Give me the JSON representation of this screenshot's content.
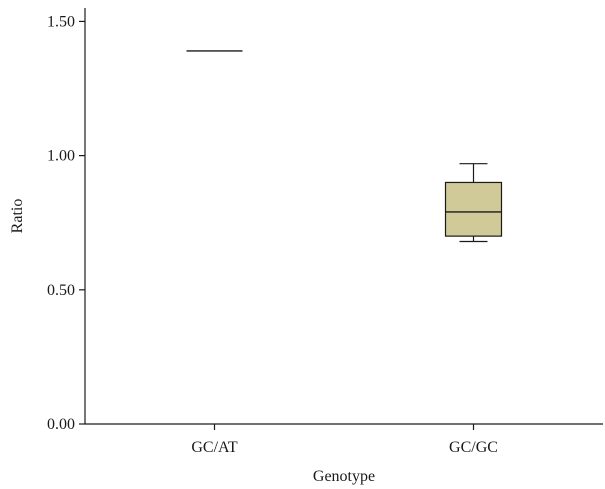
{
  "chart_data": {
    "type": "boxplot",
    "xlabel": "Genotype",
    "ylabel": "Ratio",
    "ylim": [
      0,
      1.55
    ],
    "y_ticks": [
      "0.00",
      "0.50",
      "1.00",
      "1.50"
    ],
    "categories": [
      "GC/AT",
      "GC/GC"
    ],
    "series": [
      {
        "category": "GC/AT",
        "min": 1.39,
        "q1": 1.39,
        "median": 1.39,
        "q3": 1.39,
        "max": 1.39
      },
      {
        "category": "GC/GC",
        "min": 0.68,
        "q1": 0.7,
        "median": 0.79,
        "q3": 0.9,
        "max": 0.97
      }
    ],
    "box_color": "#cfca98",
    "line_color": "#1a1a1a",
    "grid": false
  }
}
